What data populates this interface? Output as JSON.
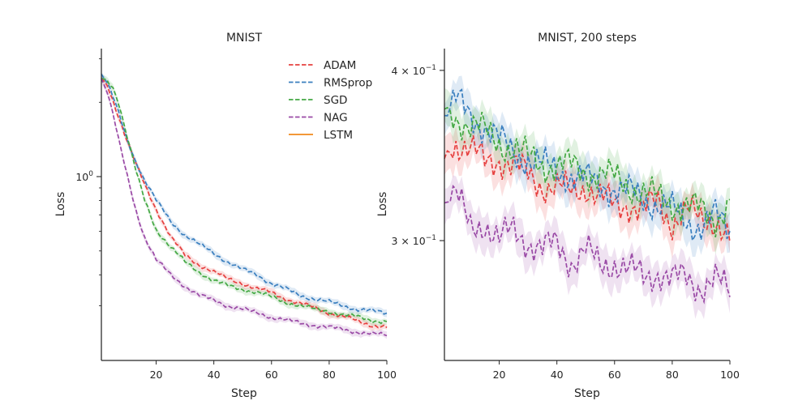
{
  "figure": {
    "colors": {
      "ADAM": "#e6403f",
      "RMSprop": "#3a7fbf",
      "SGD": "#43a843",
      "NAG": "#9a4aa6",
      "LSTM": "#f08a1c"
    }
  },
  "chart_data": [
    {
      "type": "line",
      "title": "MNIST",
      "xlabel": "Step",
      "ylabel": "Loss",
      "yscale": "log",
      "xlim": [
        1,
        100
      ],
      "ylim": [
        0.18,
        3.3
      ],
      "xticks": [
        20,
        40,
        60,
        80,
        100
      ],
      "yticks_major": [
        {
          "value": 1,
          "label": "10",
          "sup": "0"
        }
      ],
      "yticks_minor": [
        0.3,
        0.4,
        0.5,
        0.6,
        0.7,
        0.8,
        0.9,
        2,
        3
      ],
      "legend": {
        "position": "top-right",
        "entries": [
          {
            "name": "ADAM",
            "style": "dashed"
          },
          {
            "name": "RMSprop",
            "style": "dashed"
          },
          {
            "name": "SGD",
            "style": "dashed"
          },
          {
            "name": "NAG",
            "style": "dashed"
          },
          {
            "name": "LSTM",
            "style": "solid"
          }
        ]
      },
      "series": [
        {
          "name": "ADAM",
          "style": "dashed",
          "x": [
            1,
            3,
            5,
            7,
            10,
            13,
            16,
            20,
            25,
            30,
            35,
            40,
            45,
            50,
            55,
            60,
            65,
            70,
            75,
            80,
            85,
            90,
            95,
            100
          ],
          "y": [
            2.5,
            2.35,
            2.05,
            1.75,
            1.38,
            1.12,
            0.93,
            0.74,
            0.57,
            0.48,
            0.44,
            0.41,
            0.385,
            0.37,
            0.35,
            0.34,
            0.32,
            0.305,
            0.295,
            0.28,
            0.27,
            0.26,
            0.25,
            0.245
          ]
        },
        {
          "name": "RMSprop",
          "style": "dashed",
          "x": [
            1,
            3,
            5,
            7,
            10,
            13,
            16,
            20,
            25,
            30,
            35,
            40,
            45,
            50,
            55,
            60,
            65,
            70,
            75,
            80,
            85,
            90,
            95,
            100
          ],
          "y": [
            2.6,
            2.4,
            2.1,
            1.8,
            1.4,
            1.15,
            0.97,
            0.8,
            0.66,
            0.58,
            0.53,
            0.49,
            0.45,
            0.42,
            0.4,
            0.37,
            0.35,
            0.33,
            0.32,
            0.31,
            0.3,
            0.29,
            0.285,
            0.28
          ]
        },
        {
          "name": "SGD",
          "style": "dashed",
          "x": [
            1,
            3,
            5,
            7,
            10,
            13,
            16,
            20,
            25,
            30,
            35,
            40,
            45,
            50,
            55,
            60,
            65,
            70,
            75,
            80,
            85,
            90,
            95,
            100
          ],
          "y": [
            2.5,
            2.45,
            2.3,
            2.0,
            1.45,
            1.05,
            0.8,
            0.61,
            0.52,
            0.45,
            0.41,
            0.38,
            0.36,
            0.35,
            0.34,
            0.325,
            0.31,
            0.3,
            0.29,
            0.285,
            0.275,
            0.27,
            0.262,
            0.258
          ]
        },
        {
          "name": "NAG",
          "style": "dashed",
          "x": [
            1,
            3,
            5,
            7,
            10,
            13,
            16,
            20,
            25,
            30,
            35,
            40,
            45,
            50,
            55,
            60,
            65,
            70,
            75,
            80,
            85,
            90,
            95,
            100
          ],
          "y": [
            2.5,
            2.2,
            1.8,
            1.4,
            1.0,
            0.73,
            0.57,
            0.46,
            0.4,
            0.36,
            0.33,
            0.315,
            0.3,
            0.29,
            0.28,
            0.27,
            0.262,
            0.255,
            0.25,
            0.245,
            0.24,
            0.235,
            0.23,
            0.228
          ]
        }
      ]
    },
    {
      "type": "line",
      "title": "MNIST, 200 steps",
      "xlabel": "Step",
      "ylabel": "Loss",
      "yscale": "log",
      "xlim": [
        1,
        100
      ],
      "ylim": [
        0.245,
        0.415
      ],
      "xticks": [
        20,
        40,
        60,
        80,
        100
      ],
      "yticks_major": [
        {
          "value": 0.3,
          "label": "3 × 10",
          "sup": "−1"
        },
        {
          "value": 0.4,
          "label": "4 × 10",
          "sup": "−1"
        }
      ],
      "series": [
        {
          "name": "ADAM",
          "style": "dashed",
          "x": [
            1,
            5,
            10,
            15,
            20,
            25,
            30,
            35,
            40,
            45,
            50,
            55,
            60,
            65,
            70,
            75,
            80,
            85,
            90,
            95,
            100
          ],
          "y": [
            0.345,
            0.355,
            0.35,
            0.342,
            0.345,
            0.34,
            0.335,
            0.33,
            0.328,
            0.325,
            0.33,
            0.322,
            0.318,
            0.32,
            0.315,
            0.32,
            0.31,
            0.315,
            0.31,
            0.312,
            0.3
          ]
        },
        {
          "name": "RMSprop",
          "style": "dashed",
          "x": [
            1,
            5,
            10,
            15,
            20,
            25,
            30,
            35,
            40,
            45,
            50,
            55,
            60,
            65,
            70,
            75,
            80,
            85,
            90,
            95,
            100
          ],
          "y": [
            0.37,
            0.38,
            0.37,
            0.365,
            0.355,
            0.348,
            0.345,
            0.34,
            0.338,
            0.335,
            0.332,
            0.33,
            0.328,
            0.325,
            0.322,
            0.32,
            0.315,
            0.31,
            0.308,
            0.312,
            0.305
          ]
        },
        {
          "name": "SGD",
          "style": "dashed",
          "x": [
            1,
            5,
            10,
            15,
            20,
            25,
            30,
            35,
            40,
            45,
            50,
            55,
            60,
            65,
            70,
            75,
            80,
            85,
            90,
            95,
            100
          ],
          "y": [
            0.375,
            0.37,
            0.365,
            0.36,
            0.355,
            0.35,
            0.345,
            0.342,
            0.34,
            0.34,
            0.338,
            0.335,
            0.333,
            0.33,
            0.325,
            0.322,
            0.32,
            0.318,
            0.315,
            0.312,
            0.32
          ]
        },
        {
          "name": "NAG",
          "style": "dashed",
          "x": [
            1,
            5,
            10,
            15,
            20,
            25,
            30,
            35,
            40,
            45,
            50,
            55,
            60,
            65,
            70,
            75,
            80,
            85,
            90,
            95,
            100
          ],
          "y": [
            0.32,
            0.325,
            0.305,
            0.31,
            0.3,
            0.305,
            0.3,
            0.295,
            0.298,
            0.29,
            0.295,
            0.287,
            0.29,
            0.285,
            0.282,
            0.285,
            0.28,
            0.282,
            0.278,
            0.28,
            0.275
          ]
        }
      ]
    }
  ]
}
